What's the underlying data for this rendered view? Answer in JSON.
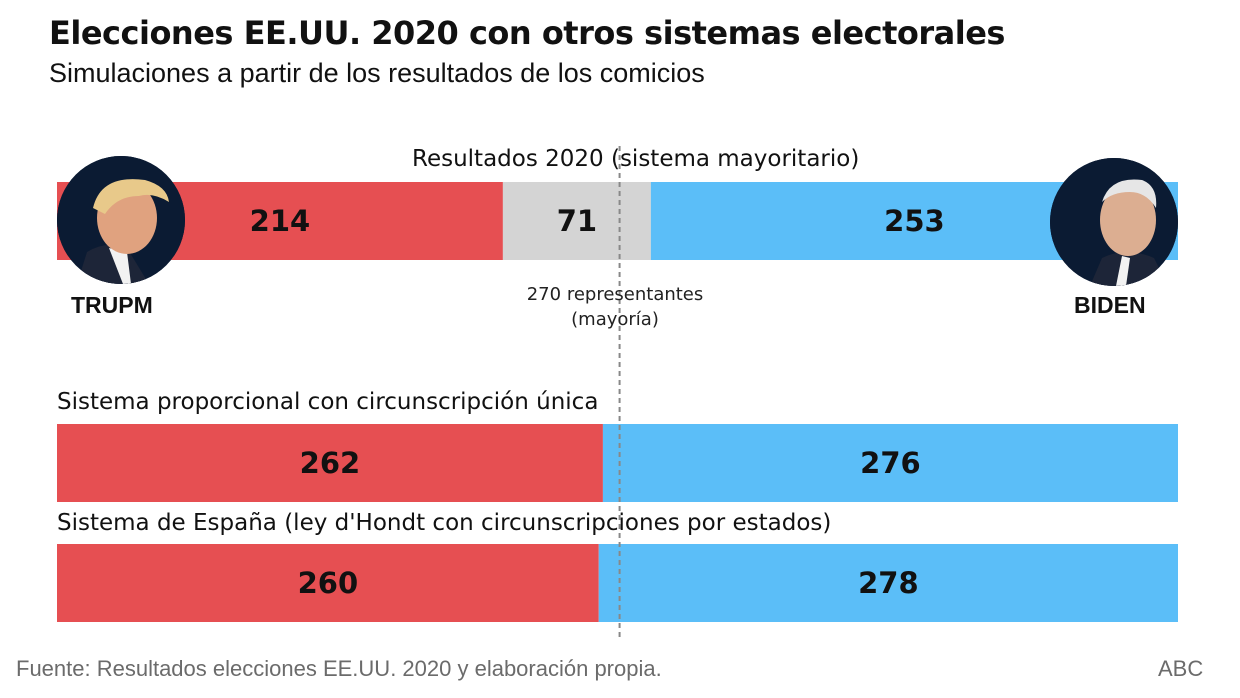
{
  "title": "Elecciones EE.UU. 2020 con otros sistemas electorales",
  "subtitle": "Simulaciones a partir de los resultados de los comicios",
  "majority_label": [
    "270 representantes",
    "(mayoría)"
  ],
  "candidates": {
    "left": {
      "name": "TRUPM",
      "icon": "trump-portrait-icon"
    },
    "right": {
      "name": "BIDEN",
      "icon": "biden-portrait-icon"
    }
  },
  "footer": {
    "source": "Fuente: Resultados elecciones EE.UU. 2020 y elaboración propia.",
    "brand": "ABC"
  },
  "colors": {
    "trump": "#e64f52",
    "undecided": "#d4d4d4",
    "biden": "#5bbef8",
    "majority_line": "#888888"
  },
  "chart_data": {
    "type": "bar",
    "orientation": "horizontal-stacked",
    "total": 538,
    "majority": 270,
    "rows": [
      {
        "label": "Resultados 2020 (sistema mayoritario)",
        "segments": [
          {
            "value": 214,
            "color": "#e64f52"
          },
          {
            "value": 71,
            "color": "#d4d4d4"
          },
          {
            "value": 253,
            "color": "#5bbef8"
          }
        ]
      },
      {
        "label": "Sistema proporcional con circunscripción única",
        "segments": [
          {
            "value": 262,
            "color": "#e64f52"
          },
          {
            "value": 276,
            "color": "#5bbef8"
          }
        ]
      },
      {
        "label": "Sistema de España (ley d'Hondt con circunscripciones por estados)",
        "segments": [
          {
            "value": 260,
            "color": "#e64f52"
          },
          {
            "value": 278,
            "color": "#5bbef8"
          }
        ]
      }
    ]
  }
}
